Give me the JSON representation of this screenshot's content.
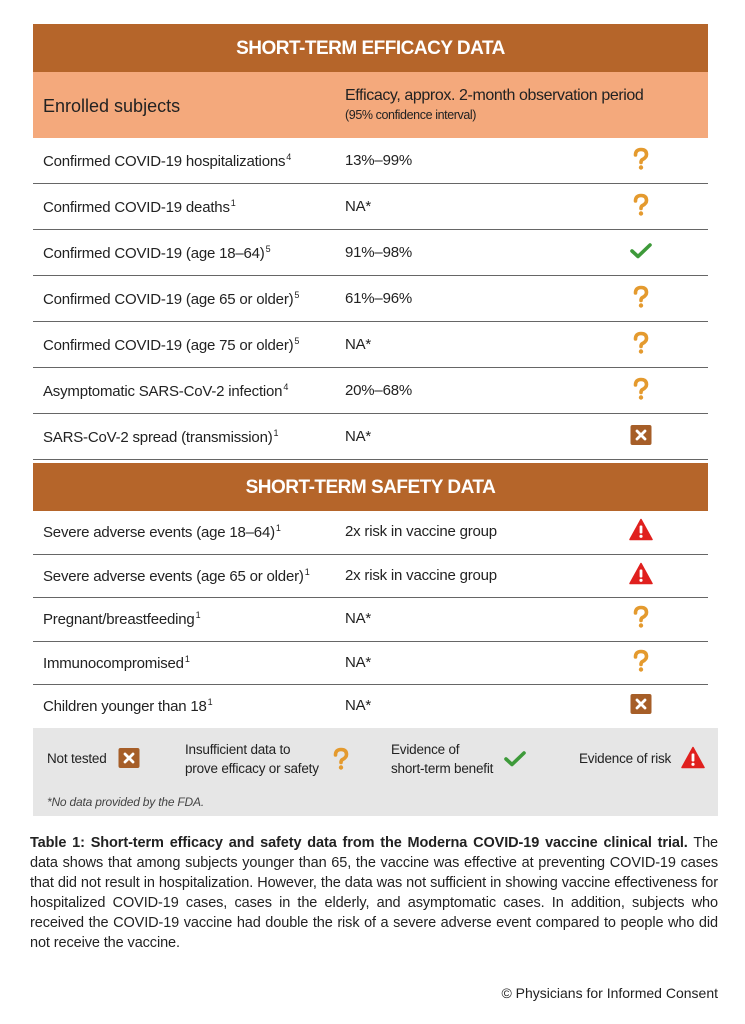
{
  "efficacy": {
    "title": "SHORT-TERM EFFICACY DATA",
    "header": {
      "subjects": "Enrolled subjects",
      "efficacy": "Efficacy, approx. 2-month observation period",
      "interval": "(95% confidence interval)"
    },
    "rows": [
      {
        "subject": "Confirmed COVID-19 hospitalizations",
        "ref": "4",
        "value": "13%–99%",
        "status": "insufficient"
      },
      {
        "subject": "Confirmed COVID-19 deaths",
        "ref": "1",
        "value": "NA*",
        "status": "insufficient"
      },
      {
        "subject": "Confirmed COVID-19 (age 18–64)",
        "ref": "5",
        "value": "91%–98%",
        "status": "benefit"
      },
      {
        "subject": "Confirmed COVID-19 (age 65 or older)",
        "ref": "5",
        "value": "61%–96%",
        "status": "insufficient"
      },
      {
        "subject": "Confirmed COVID-19 (age 75 or older)",
        "ref": "5",
        "value": "NA*",
        "status": "insufficient"
      },
      {
        "subject": "Asymptomatic SARS-CoV-2 infection",
        "ref": "4",
        "value": "20%–68%",
        "status": "insufficient"
      },
      {
        "subject": "SARS-CoV-2 spread (transmission)",
        "ref": "1",
        "value": "NA*",
        "status": "untested"
      }
    ]
  },
  "safety": {
    "title": "SHORT-TERM SAFETY DATA",
    "rows": [
      {
        "subject": "Severe adverse events (age 18–64)",
        "ref": "1",
        "value": "2x risk in vaccine group",
        "status": "risk"
      },
      {
        "subject": "Severe adverse events (age 65 or older)",
        "ref": "1",
        "value": "2x risk in vaccine group",
        "status": "risk"
      },
      {
        "subject": "Pregnant/breastfeeding",
        "ref": "1",
        "value": "NA*",
        "status": "insufficient"
      },
      {
        "subject": "Immunocompromised",
        "ref": "1",
        "value": "NA*",
        "status": "insufficient"
      },
      {
        "subject": "Children younger than 18",
        "ref": "1",
        "value": "NA*",
        "status": "untested"
      }
    ]
  },
  "legend": {
    "items": [
      {
        "lines": [
          "Not tested"
        ],
        "status": "untested"
      },
      {
        "lines": [
          "Insufficient data to",
          "prove efficacy or safety"
        ],
        "status": "insufficient"
      },
      {
        "lines": [
          "Evidence of",
          "short-term benefit"
        ],
        "status": "benefit"
      },
      {
        "lines": [
          "Evidence of risk"
        ],
        "status": "risk"
      }
    ],
    "note": "*No data provided by the FDA."
  },
  "caption": {
    "bold": "Table 1: Short-term efficacy and safety data from the Moderna COVID-19 vaccine clinical trial.",
    "text": "The data shows that among subjects younger than 65, the vaccine was effective at preventing COVID-19 cases that did not result in hospitalization. However, the data was not sufficient in showing vaccine effectiveness for hospitalized COVID-19 cases, cases in the elderly, and asymptomatic cases. In addition, subjects who received the COVID-19 vaccine had double the risk of a severe adverse event compared to people who did not receive the vaccine."
  },
  "credit": "© Physicians for Informed Consent"
}
